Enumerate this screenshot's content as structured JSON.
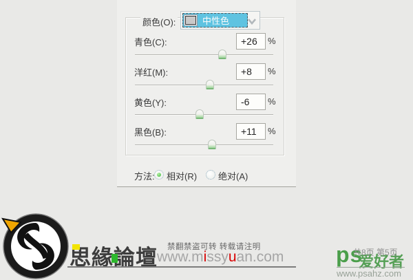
{
  "dialog": {
    "color_row": {
      "label": "颜色(O):",
      "selected": "中性色"
    },
    "sliders": [
      {
        "label": "青色(C):",
        "value": "+26",
        "unit": "%",
        "percent": 26
      },
      {
        "label": "洋红(M):",
        "value": "+8",
        "unit": "%",
        "percent": 8
      },
      {
        "label": "黄色(Y):",
        "value": "-6",
        "unit": "%",
        "percent": -6
      },
      {
        "label": "黑色(B):",
        "value": "+11",
        "unit": "%",
        "percent": 11
      }
    ],
    "method_row": {
      "label": "方法:",
      "options": [
        {
          "label": "相对(R)",
          "selected": true
        },
        {
          "label": "绝对(A)",
          "selected": false
        }
      ]
    }
  },
  "watermark": {
    "missyuan": {
      "title": "思緣論壇",
      "notice": "禁翻禁盗可转  转载请注明",
      "url_parts": [
        "www.m",
        "i",
        "ssy",
        "u",
        "an.com"
      ]
    },
    "psahz": {
      "brand": "ps",
      "brand_suffix": "爱好者",
      "pages": "共8页 第5页",
      "url": "www.psahz.com"
    }
  },
  "colors": {
    "highlight_blue": "#5fc3e1",
    "radio_green": "#3db83d",
    "url_red": "#d80000",
    "ps_green": "#4a9e4a",
    "square_yellow": "#f2e400",
    "square_green": "#2db82d"
  }
}
